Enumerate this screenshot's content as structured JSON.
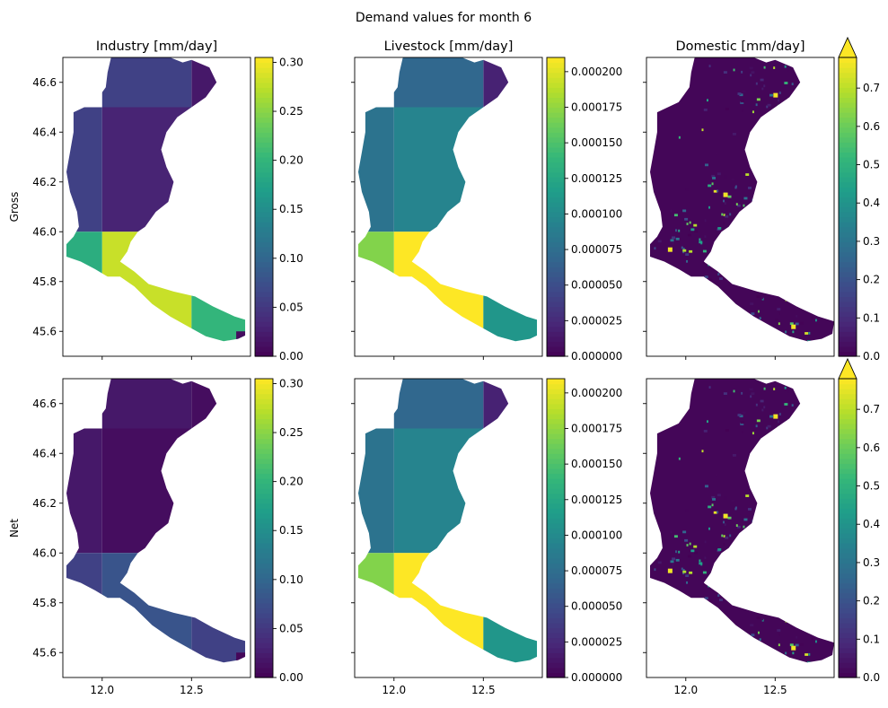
{
  "figure": {
    "suptitle": "Demand values for month 6"
  },
  "colors": {
    "viridis": [
      "#440154",
      "#482878",
      "#3e4989",
      "#31688e",
      "#26828e",
      "#1f9e89",
      "#35b779",
      "#6ece58",
      "#b5de2b",
      "#fde725"
    ]
  },
  "chart_data": [
    {
      "type": "heatmap",
      "row": "Gross",
      "title": "Industry [mm/day]",
      "ylabel": "Gross",
      "xlim": [
        11.78,
        12.83
      ],
      "ylim": [
        45.5,
        46.7
      ],
      "xticks": [],
      "yticks": [
        "45.6",
        "45.8",
        "46.0",
        "46.2",
        "46.4",
        "46.6"
      ],
      "colorbar": {
        "range": [
          0,
          0.305
        ],
        "ticks": [
          "0.00",
          "0.05",
          "0.10",
          "0.15",
          "0.20",
          "0.25",
          "0.30"
        ],
        "extend": "neither"
      },
      "blocks": [
        {
          "lat": [
            46.5,
            46.7
          ],
          "lon": [
            12.5,
            12.8
          ],
          "value": 0.02
        },
        {
          "lat": [
            46.5,
            46.7
          ],
          "lon": [
            12.0,
            12.5
          ],
          "value": 0.06
        },
        {
          "lat": [
            46.0,
            46.5
          ],
          "lon": [
            11.8,
            12.0
          ],
          "value": 0.06
        },
        {
          "lat": [
            46.0,
            46.5
          ],
          "lon": [
            12.0,
            12.5
          ],
          "value": 0.03
        },
        {
          "lat": [
            45.5,
            46.0
          ],
          "lon": [
            11.8,
            12.0
          ],
          "value": 0.19
        },
        {
          "lat": [
            45.5,
            46.0
          ],
          "lon": [
            12.0,
            12.5
          ],
          "value": 0.28
        },
        {
          "lat": [
            45.5,
            45.8
          ],
          "lon": [
            12.5,
            12.8
          ],
          "value": 0.2
        },
        {
          "lat": [
            45.5,
            45.6
          ],
          "lon": [
            12.75,
            12.8
          ],
          "value": 0.01
        }
      ]
    },
    {
      "type": "heatmap",
      "row": "Gross",
      "title": "Livestock [mm/day]",
      "xlim": [
        11.78,
        12.83
      ],
      "ylim": [
        45.5,
        46.7
      ],
      "xticks": [],
      "yticks": [],
      "colorbar": {
        "range": [
          0,
          0.00021
        ],
        "ticks": [
          "0.000000",
          "0.000025",
          "0.000050",
          "0.000075",
          "0.000100",
          "0.000125",
          "0.000150",
          "0.000175",
          "0.000200"
        ],
        "extend": "neither"
      },
      "blocks": [
        {
          "lat": [
            46.5,
            46.7
          ],
          "lon": [
            12.5,
            12.8
          ],
          "value": 2e-05
        },
        {
          "lat": [
            46.5,
            46.7
          ],
          "lon": [
            12.0,
            12.5
          ],
          "value": 7e-05
        },
        {
          "lat": [
            46.0,
            46.5
          ],
          "lon": [
            11.8,
            12.0
          ],
          "value": 8e-05
        },
        {
          "lat": [
            46.0,
            46.5
          ],
          "lon": [
            12.0,
            12.5
          ],
          "value": 9.5e-05
        },
        {
          "lat": [
            46.47,
            46.5
          ],
          "lon": [
            12.5,
            12.6
          ],
          "value": 0.00013
        },
        {
          "lat": [
            45.5,
            46.0
          ],
          "lon": [
            11.8,
            12.0
          ],
          "value": 0.00017
        },
        {
          "lat": [
            45.5,
            46.0
          ],
          "lon": [
            12.0,
            12.5
          ],
          "value": 0.00021
        },
        {
          "lat": [
            45.5,
            45.8
          ],
          "lon": [
            12.5,
            12.8
          ],
          "value": 0.00011
        }
      ]
    },
    {
      "type": "heatmap",
      "row": "Gross",
      "title": "Domestic [mm/day]",
      "xlim": [
        11.78,
        12.83
      ],
      "ylim": [
        45.5,
        46.7
      ],
      "xticks": [],
      "yticks": [],
      "colorbar": {
        "range": [
          0,
          0.78
        ],
        "ticks": [
          "0.0",
          "0.1",
          "0.2",
          "0.3",
          "0.4",
          "0.5",
          "0.6",
          "0.7"
        ],
        "extend": "max"
      },
      "field": "domestic",
      "background_value": 0.01
    },
    {
      "type": "heatmap",
      "row": "Net",
      "title": "",
      "ylabel": "Net",
      "xlim": [
        11.78,
        12.83
      ],
      "ylim": [
        45.5,
        46.7
      ],
      "xticks": [
        "12.0",
        "12.5"
      ],
      "yticks": [
        "45.6",
        "45.8",
        "46.0",
        "46.2",
        "46.4",
        "46.6"
      ],
      "colorbar": {
        "range": [
          0,
          0.305
        ],
        "ticks": [
          "0.00",
          "0.05",
          "0.10",
          "0.15",
          "0.20",
          "0.25",
          "0.30"
        ],
        "extend": "neither"
      },
      "blocks": [
        {
          "lat": [
            46.5,
            46.7
          ],
          "lon": [
            12.5,
            12.8
          ],
          "value": 0.01
        },
        {
          "lat": [
            46.5,
            46.7
          ],
          "lon": [
            12.0,
            12.5
          ],
          "value": 0.02
        },
        {
          "lat": [
            46.0,
            46.5
          ],
          "lon": [
            11.8,
            12.0
          ],
          "value": 0.02
        },
        {
          "lat": [
            46.0,
            46.5
          ],
          "lon": [
            12.0,
            12.5
          ],
          "value": 0.01
        },
        {
          "lat": [
            45.5,
            46.0
          ],
          "lon": [
            11.8,
            12.0
          ],
          "value": 0.06
        },
        {
          "lat": [
            45.5,
            46.0
          ],
          "lon": [
            12.0,
            12.5
          ],
          "value": 0.08
        },
        {
          "lat": [
            45.5,
            45.8
          ],
          "lon": [
            12.5,
            12.8
          ],
          "value": 0.06
        },
        {
          "lat": [
            45.5,
            45.6
          ],
          "lon": [
            12.75,
            12.8
          ],
          "value": 0.005
        }
      ]
    },
    {
      "type": "heatmap",
      "row": "Net",
      "title": "",
      "xlim": [
        11.78,
        12.83
      ],
      "ylim": [
        45.5,
        46.7
      ],
      "xticks": [
        "12.0",
        "12.5"
      ],
      "yticks": [],
      "colorbar": {
        "range": [
          0,
          0.00021
        ],
        "ticks": [
          "0.000000",
          "0.000025",
          "0.000050",
          "0.000075",
          "0.000100",
          "0.000125",
          "0.000150",
          "0.000175",
          "0.000200"
        ],
        "extend": "neither"
      },
      "blocks": [
        {
          "lat": [
            46.5,
            46.7
          ],
          "lon": [
            12.5,
            12.8
          ],
          "value": 2e-05
        },
        {
          "lat": [
            46.5,
            46.7
          ],
          "lon": [
            12.0,
            12.5
          ],
          "value": 7e-05
        },
        {
          "lat": [
            46.0,
            46.5
          ],
          "lon": [
            11.8,
            12.0
          ],
          "value": 8e-05
        },
        {
          "lat": [
            46.0,
            46.5
          ],
          "lon": [
            12.0,
            12.5
          ],
          "value": 9.5e-05
        },
        {
          "lat": [
            46.47,
            46.5
          ],
          "lon": [
            12.5,
            12.6
          ],
          "value": 0.00013
        },
        {
          "lat": [
            45.5,
            46.0
          ],
          "lon": [
            11.8,
            12.0
          ],
          "value": 0.00017
        },
        {
          "lat": [
            45.5,
            46.0
          ],
          "lon": [
            12.0,
            12.5
          ],
          "value": 0.00021
        },
        {
          "lat": [
            45.5,
            45.8
          ],
          "lon": [
            12.5,
            12.8
          ],
          "value": 0.00011
        }
      ]
    },
    {
      "type": "heatmap",
      "row": "Net",
      "title": "",
      "xlim": [
        11.78,
        12.83
      ],
      "ylim": [
        45.5,
        46.7
      ],
      "xticks": [
        "12.0",
        "12.5"
      ],
      "yticks": [],
      "colorbar": {
        "range": [
          0,
          0.78
        ],
        "ticks": [
          "0.0",
          "0.1",
          "0.2",
          "0.3",
          "0.4",
          "0.5",
          "0.6",
          "0.7"
        ],
        "extend": "max"
      },
      "field": "domestic",
      "background_value": 0.01
    }
  ]
}
